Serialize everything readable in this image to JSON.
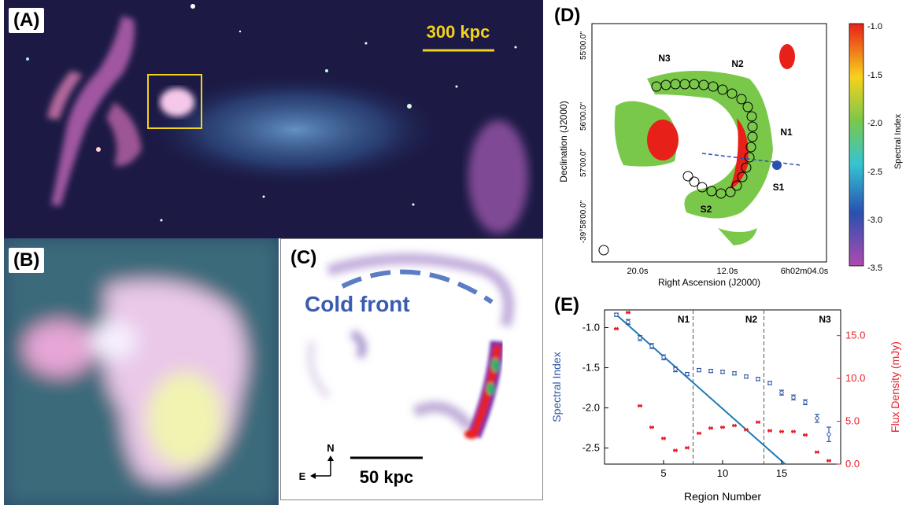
{
  "panels": {
    "A": {
      "label": "(A)",
      "scale_text": "300 kpc"
    },
    "B": {
      "label": "(B)"
    },
    "C": {
      "label": "(C)",
      "cold_front": "Cold front",
      "scale_text": "50 kpc",
      "north": "N",
      "east": "E"
    },
    "D": {
      "label": "(D)",
      "xlabel": "Right Ascension (J2000)",
      "ylabel": "Declination (J2000)",
      "x_ticks": [
        "20.0s",
        "12.0s",
        "6h02m04.0s"
      ],
      "y_ticks": [
        "55'00.0\"",
        "56'00.0\"",
        "57'00.0\"",
        "-39°58'00.0\""
      ],
      "region_labels": [
        "N3",
        "N2",
        "N1",
        "S1",
        "S2"
      ],
      "colorbar": {
        "label": "Spectral Index",
        "ticks": [
          "-1.0",
          "-1.5",
          "-2.0",
          "-2.5",
          "-3.0",
          "-3.5"
        ]
      }
    },
    "E": {
      "label": "(E)"
    }
  },
  "chart_data": {
    "type": "scatter",
    "xlabel": "Region Number",
    "ylabel": "Spectral Index",
    "y2label": "Flux Density (mJy)",
    "xlim": [
      0,
      20
    ],
    "ylim": [
      -2.7,
      -0.78
    ],
    "y2lim": [
      0,
      18
    ],
    "x_ticks": [
      "5",
      "10",
      "15"
    ],
    "y_ticks": [
      "-1.0",
      "-1.5",
      "-2.0",
      "-2.5"
    ],
    "y2_ticks": [
      "0.0",
      "5.0",
      "10.0",
      "15.0"
    ],
    "sections": [
      "N1",
      "N2",
      "N3"
    ],
    "dividers": [
      7.5,
      13.5
    ],
    "series": [
      {
        "color": "#2e57a6",
        "x": [
          1,
          2,
          3,
          4,
          5,
          6,
          7,
          8,
          9,
          10,
          11,
          12,
          13,
          14,
          15,
          16,
          17,
          18,
          19
        ],
        "y": [
          -0.84,
          -0.93,
          -1.13,
          -1.23,
          -1.37,
          -1.52,
          -1.58,
          -1.53,
          -1.54,
          -1.55,
          -1.57,
          -1.61,
          -1.64,
          -1.69,
          -1.81,
          -1.87,
          -1.93,
          -2.13,
          -2.33
        ],
        "err": [
          0.02,
          0.03,
          0.03,
          0.03,
          0.03,
          0.03,
          0.02,
          0.02,
          0.02,
          0.02,
          0.02,
          0.02,
          0.02,
          0.02,
          0.03,
          0.03,
          0.03,
          0.05,
          0.09
        ]
      },
      {
        "color": "#e8202a",
        "axis": "right",
        "x": [
          1,
          2,
          3,
          4,
          5,
          6,
          7,
          8,
          9,
          10,
          11,
          12,
          13,
          14,
          15,
          16,
          17,
          18,
          19
        ],
        "y": [
          15.8,
          17.7,
          6.8,
          4.3,
          3.0,
          1.6,
          1.9,
          3.6,
          4.2,
          4.3,
          4.5,
          4.0,
          4.9,
          3.9,
          3.8,
          3.8,
          3.4,
          1.4,
          0.4
        ]
      }
    ],
    "fit": {
      "color": "#1f7ab5",
      "x": [
        1,
        15.3
      ],
      "y": [
        -0.84,
        -2.7
      ]
    }
  }
}
